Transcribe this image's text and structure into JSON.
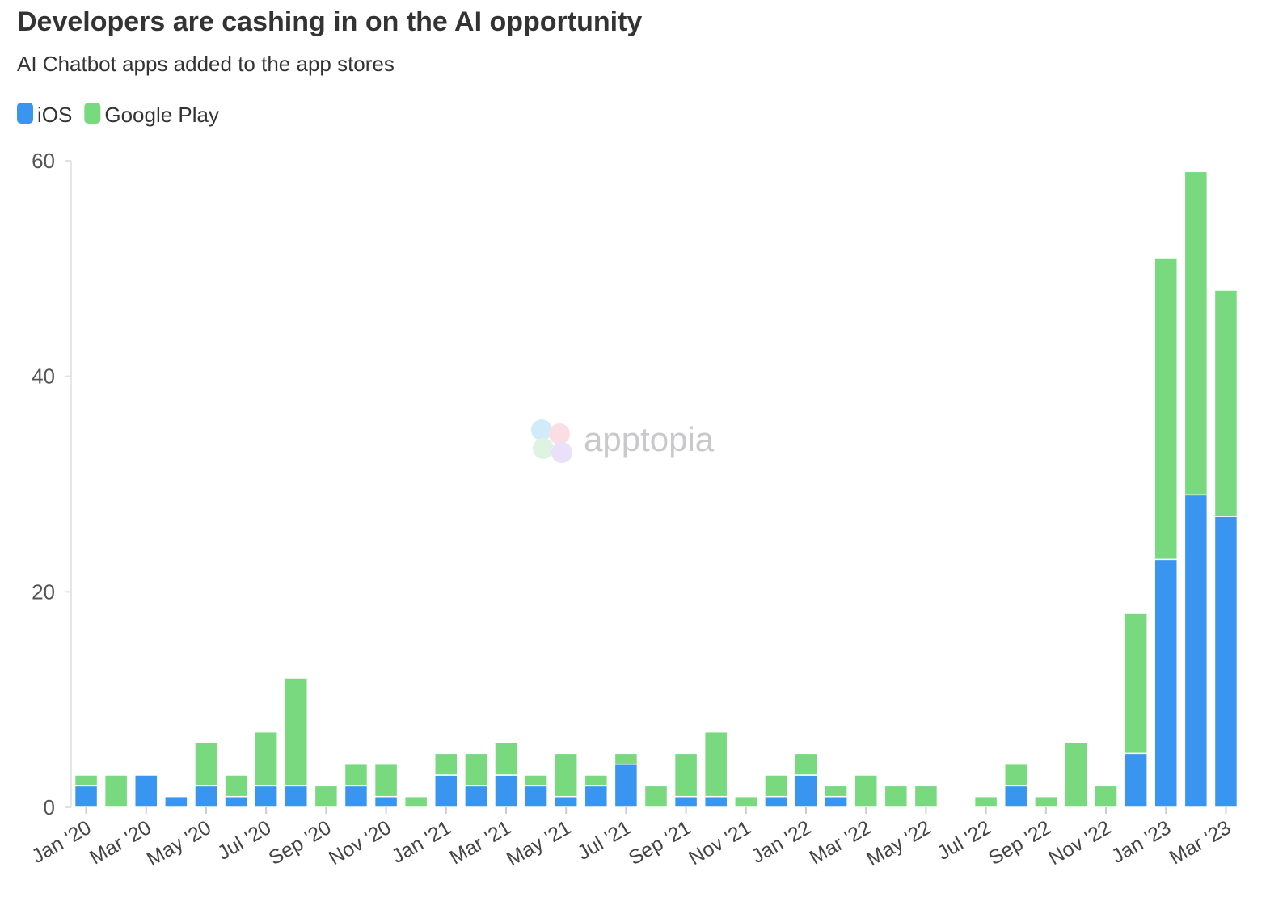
{
  "chart_data": {
    "type": "stacked_bar",
    "title": "Developers are cashing in on the AI opportunity",
    "subtitle": "AI Chatbot apps added to the app stores",
    "watermark": "apptopia",
    "categories": [
      "Jan '20",
      null,
      "Mar '20",
      null,
      "May '20",
      null,
      "Jul '20",
      null,
      "Sep '20",
      null,
      "Nov '20",
      null,
      "Jan '21",
      null,
      "Mar '21",
      null,
      "May '21",
      null,
      "Jul '21",
      null,
      "Sep '21",
      null,
      "Nov '21",
      null,
      "Jan '22",
      null,
      "Mar '22",
      null,
      "May '22",
      null,
      "Jul '22",
      null,
      "Sep '22",
      null,
      "Nov '22",
      null,
      "Jan '23",
      null,
      "Mar '23"
    ],
    "series": [
      {
        "name": "iOS",
        "color": "#3a95f0",
        "values": [
          2,
          0,
          3,
          1,
          2,
          1,
          2,
          2,
          0,
          2,
          1,
          0,
          3,
          2,
          3,
          2,
          1,
          2,
          4,
          0,
          1,
          1,
          0,
          1,
          3,
          1,
          0,
          0,
          0,
          0,
          0,
          2,
          0,
          0,
          0,
          5,
          23,
          29,
          27
        ]
      },
      {
        "name": "Google Play",
        "color": "#78d97f",
        "values": [
          1,
          3,
          0,
          0,
          4,
          2,
          5,
          10,
          2,
          2,
          3,
          1,
          2,
          3,
          3,
          1,
          4,
          1,
          1,
          2,
          4,
          6,
          1,
          2,
          2,
          1,
          3,
          2,
          2,
          0,
          1,
          2,
          1,
          6,
          2,
          13,
          28,
          30,
          21
        ]
      }
    ],
    "ylim": [
      0,
      60
    ],
    "yticks": [
      0,
      20,
      40,
      60
    ]
  }
}
